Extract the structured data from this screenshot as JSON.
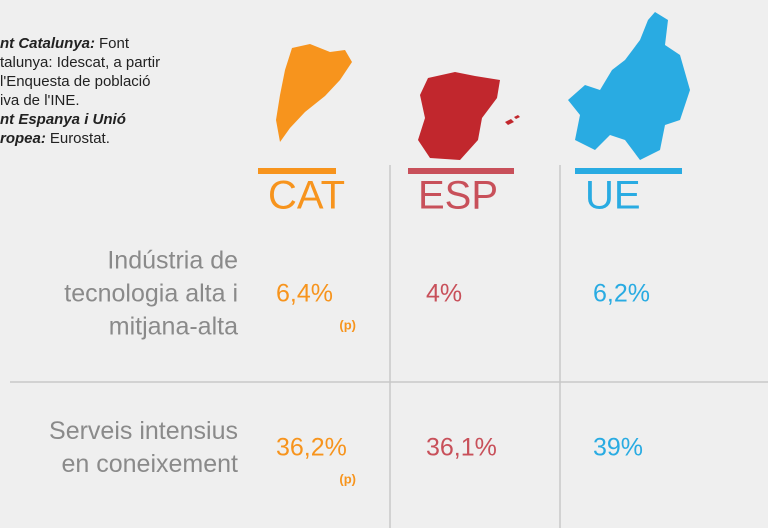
{
  "note": [
    {
      "bold": "nt Catalunya:",
      "text": "Font"
    },
    {
      "text": "talunya: Idescat, a partir"
    },
    {
      "text": "l'Enquesta de població"
    },
    {
      "text": "iva de l'INE."
    },
    {
      "bold": "nt Espanya i Unió"
    },
    {
      "bold": "ropea:",
      "text": "Eurostat."
    }
  ],
  "columns": [
    {
      "label": "CAT",
      "color": "#f7941d"
    },
    {
      "label": "ESP",
      "color": "#c8505a"
    },
    {
      "label": "UE",
      "color": "#29abe2"
    }
  ],
  "rows": [
    {
      "label": [
        "Indústria de",
        "tecnologia alta i",
        "mitjana-alta"
      ],
      "cells": [
        {
          "value": "6,4%",
          "note": "(p)"
        },
        {
          "value": "4%"
        },
        {
          "value": "6,2%"
        }
      ]
    },
    {
      "label": [
        "Serveis intensius",
        "en coneixement"
      ],
      "cells": [
        {
          "value": "36,2%",
          "note": "(p)"
        },
        {
          "value": "36,1%"
        },
        {
          "value": "39%"
        }
      ]
    }
  ]
}
